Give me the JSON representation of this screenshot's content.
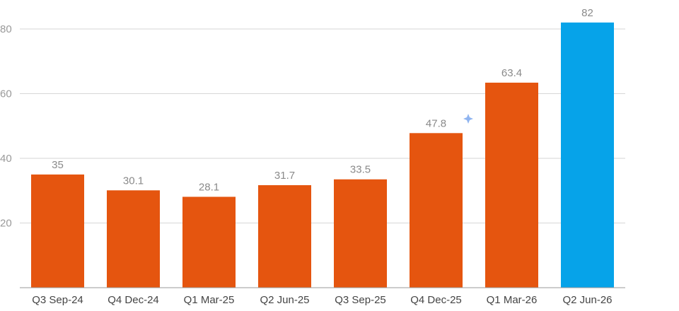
{
  "chart_data": {
    "type": "bar",
    "title": "",
    "xlabel": "",
    "ylabel": "",
    "categories": [
      "Q3 Sep-24",
      "Q4 Dec-24",
      "Q1 Mar-25",
      "Q2 Jun-25",
      "Q3 Sep-25",
      "Q4 Dec-25",
      "Q1 Mar-26",
      "Q2 Jun-26"
    ],
    "values": [
      35,
      30.1,
      28.1,
      31.7,
      33.5,
      47.8,
      63.4,
      82
    ],
    "data_labels": [
      "35",
      "30.1",
      "28.1",
      "31.7",
      "33.5",
      "47.8",
      "63.4",
      "82"
    ],
    "yticks": [
      20,
      40,
      60,
      80
    ],
    "ylim": [
      0,
      88
    ],
    "grid": true,
    "legend": "none",
    "colors": {
      "bar": "#e5550f",
      "highlight": "#06a3e9",
      "sparkle": "#8fb4f0"
    },
    "highlight_index": 7
  }
}
